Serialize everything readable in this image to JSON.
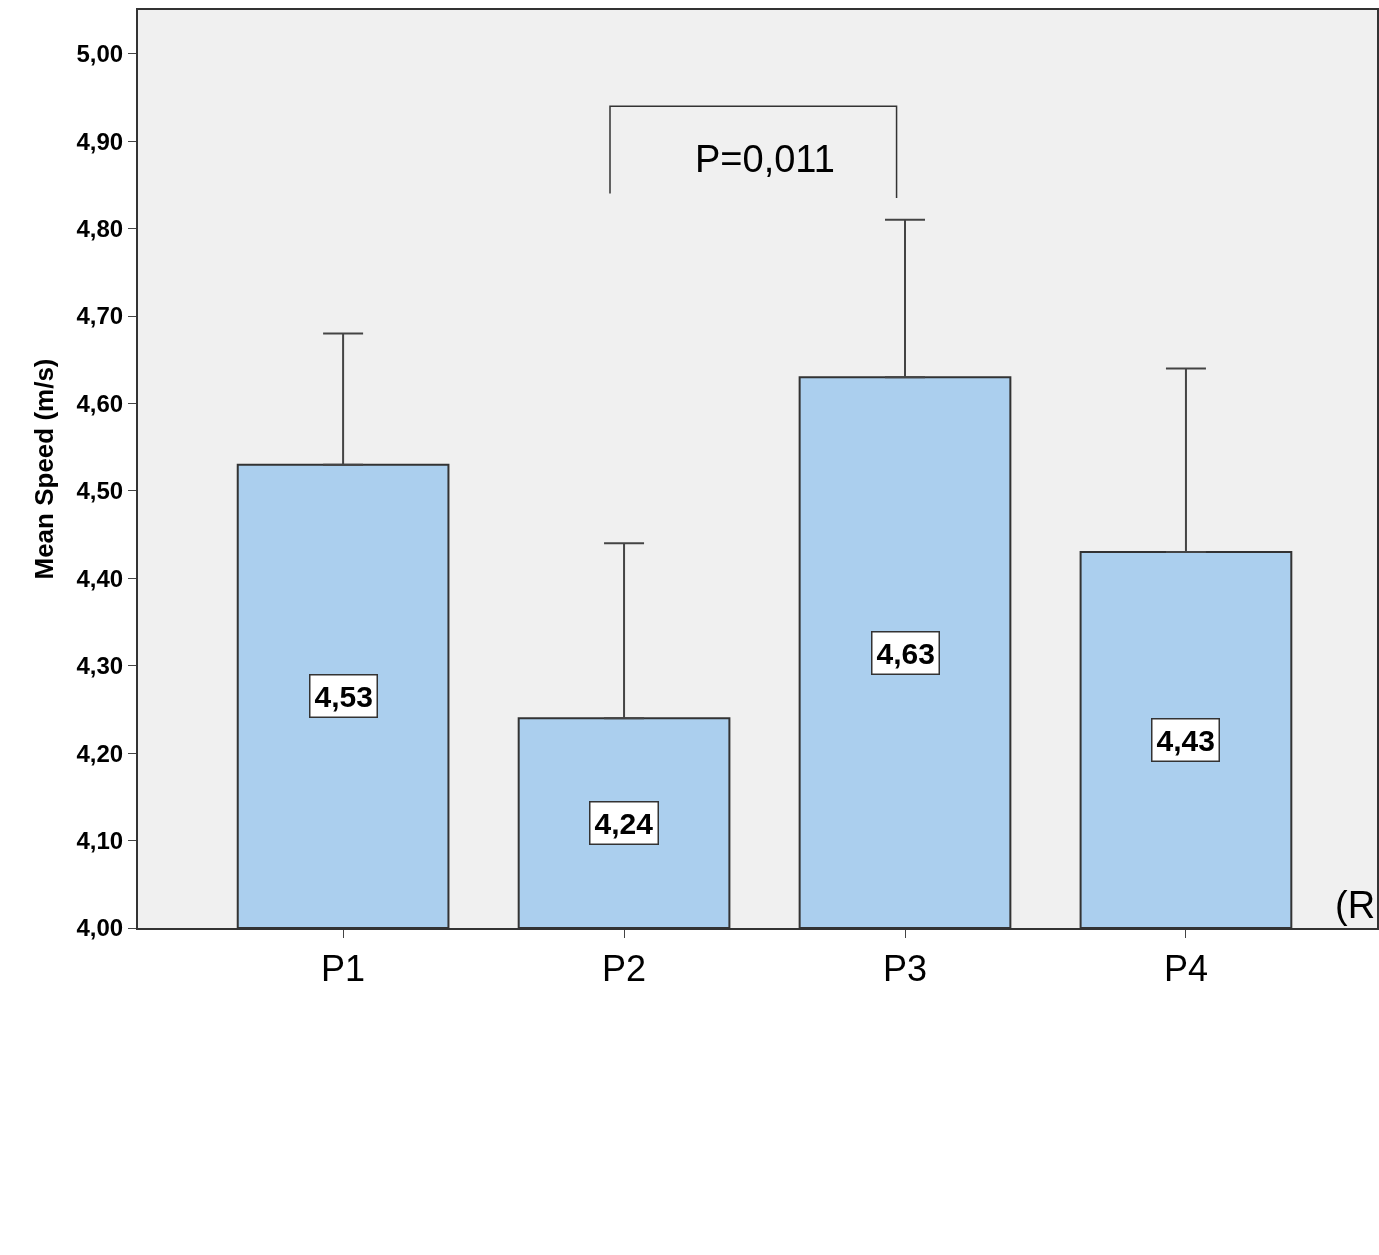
{
  "chart_data": {
    "type": "bar",
    "ylabel": "Mean Speed (m/s)",
    "categories": [
      "P1",
      "P2",
      "P3",
      "P4"
    ],
    "values": [
      4.53,
      4.24,
      4.63,
      4.43
    ],
    "errors": [
      [
        4.53,
        4.68
      ],
      [
        4.24,
        4.44
      ],
      [
        4.63,
        4.81
      ],
      [
        4.43,
        4.64
      ]
    ],
    "color": "#abcfee",
    "data_labels": true,
    "value_labels": [
      "4,53",
      "4,24",
      "4,63",
      "4,43"
    ],
    "ylim": [
      4.0,
      5.05
    ],
    "yticks": [
      {
        "value": 4.0,
        "label": "4,00"
      },
      {
        "value": 4.1,
        "label": "4,10"
      },
      {
        "value": 4.2,
        "label": "4,20"
      },
      {
        "value": 4.3,
        "label": "4,30"
      },
      {
        "value": 4.4,
        "label": "4,40"
      },
      {
        "value": 4.5,
        "label": "4,50"
      },
      {
        "value": 4.6,
        "label": "4,60"
      },
      {
        "value": 4.7,
        "label": "4,70"
      },
      {
        "value": 4.8,
        "label": "4,80"
      },
      {
        "value": 4.9,
        "label": "4,90"
      },
      {
        "value": 5.0,
        "label": "5,00"
      }
    ],
    "grid": false,
    "annotations": [
      "P=0,011",
      "(R"
    ]
  }
}
